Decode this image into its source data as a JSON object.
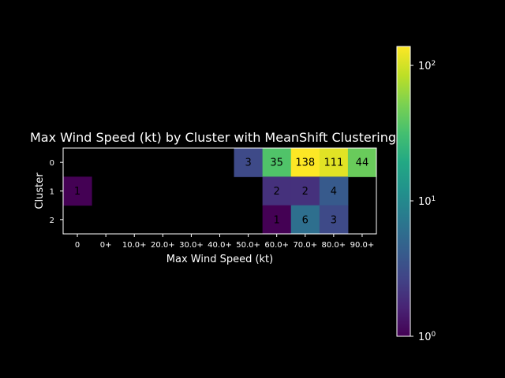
{
  "chart_data": {
    "type": "heatmap",
    "title": "Max Wind Speed (kt) by Cluster with MeanShift Clustering",
    "xlabel": "Max Wind Speed (kt)",
    "ylabel": "Cluster",
    "x_categories": [
      "0",
      "0+",
      "10.0+",
      "20.0+",
      "30.0+",
      "40.0+",
      "50.0+",
      "60.0+",
      "70.0+",
      "80.0+",
      "90.0+"
    ],
    "y_categories": [
      "0",
      "1",
      "2"
    ],
    "values": [
      [
        null,
        null,
        null,
        null,
        null,
        null,
        3,
        35,
        138,
        111,
        44
      ],
      [
        1,
        null,
        null,
        null,
        null,
        null,
        null,
        2,
        2,
        4,
        null
      ],
      [
        null,
        null,
        null,
        null,
        null,
        null,
        null,
        1,
        6,
        3,
        null
      ]
    ],
    "colorbar": {
      "scale": "log",
      "range": [
        1,
        138
      ],
      "colormap": "viridis",
      "ticks": [
        {
          "value": 1,
          "base": "10",
          "exp": "0"
        },
        {
          "value": 10,
          "base": "10",
          "exp": "1"
        },
        {
          "value": 100,
          "base": "10",
          "exp": "2"
        }
      ]
    },
    "colors": {
      "background": "#000000",
      "text": "#ffffff",
      "cell_label": "#000000"
    }
  }
}
